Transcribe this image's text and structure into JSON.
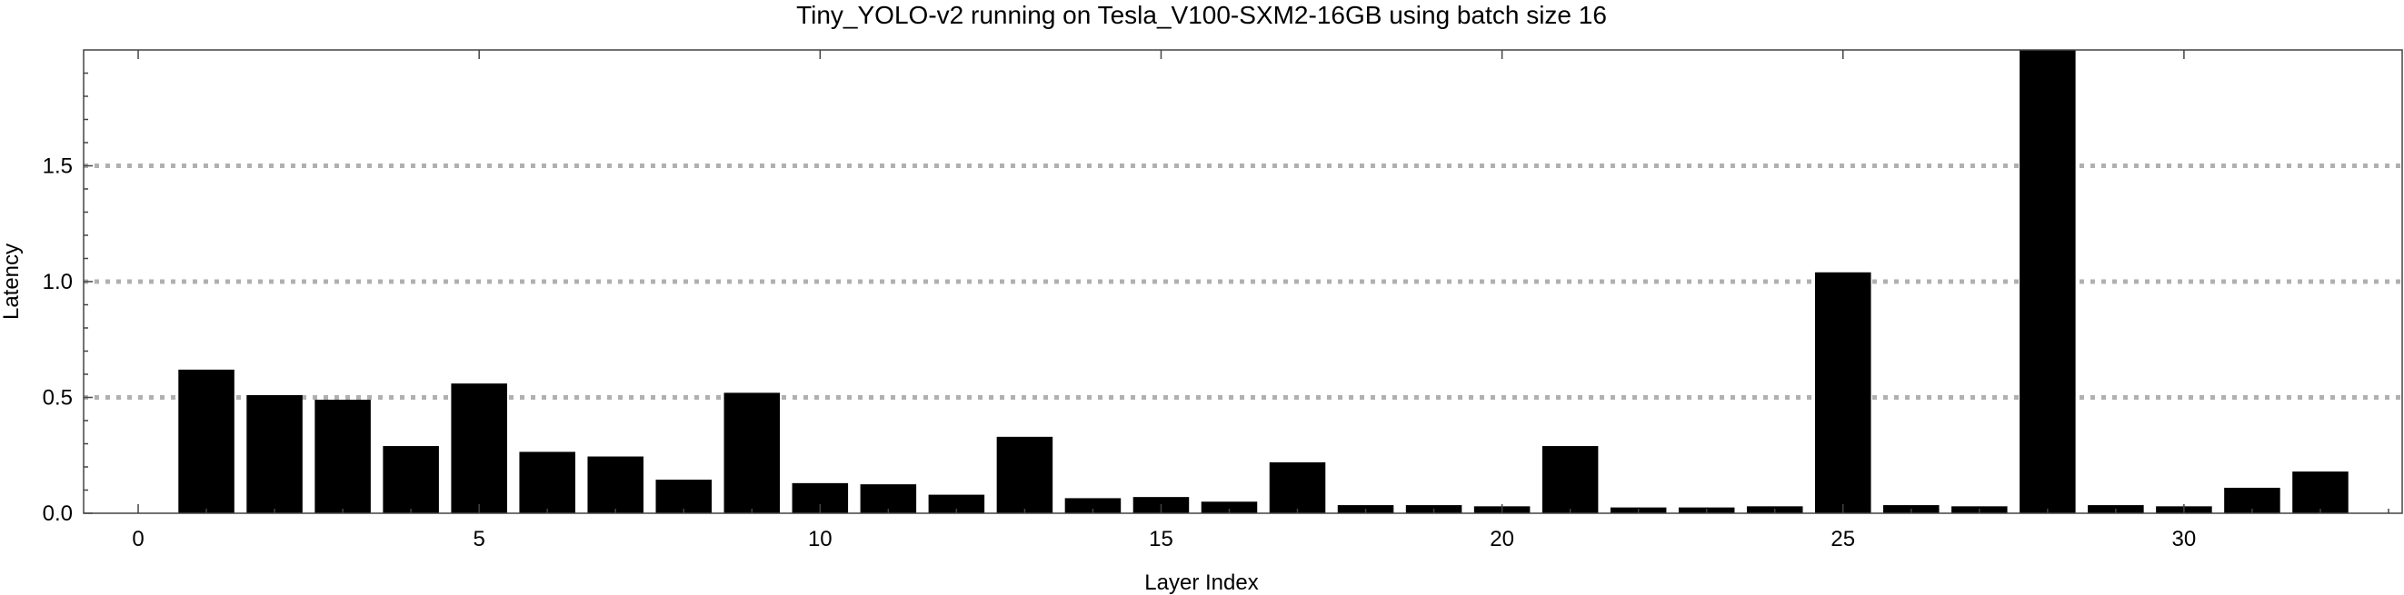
{
  "chart_data": {
    "type": "bar",
    "title": "Tiny_YOLO-v2 running on Tesla_V100-SXM2-16GB using batch size 16",
    "xlabel": "Layer Index",
    "ylabel": "Latency",
    "xlim": [
      -0.8,
      33.2
    ],
    "ylim": [
      0,
      2.0
    ],
    "xticks": [
      0,
      5,
      10,
      15,
      20,
      25,
      30
    ],
    "xtick_labels": [
      "0",
      "5",
      "10",
      "15",
      "20",
      "25",
      "30"
    ],
    "yticks": [
      0,
      0.5,
      1.0,
      1.5
    ],
    "ytick_labels": [
      "0.0",
      "0.5",
      "1.0",
      "1.5"
    ],
    "grid": "horizontal-dotted",
    "x": [
      1,
      2,
      3,
      4,
      5,
      6,
      7,
      8,
      9,
      10,
      11,
      12,
      13,
      14,
      15,
      16,
      17,
      18,
      19,
      20,
      21,
      22,
      23,
      24,
      25,
      26,
      27,
      28,
      29,
      30,
      31,
      32
    ],
    "values": [
      0.62,
      0.51,
      0.49,
      0.29,
      0.56,
      0.265,
      0.245,
      0.145,
      0.52,
      0.13,
      0.125,
      0.08,
      0.33,
      0.065,
      0.07,
      0.05,
      0.22,
      0.035,
      0.035,
      0.03,
      0.29,
      0.025,
      0.025,
      0.03,
      1.04,
      0.035,
      0.03,
      2.0,
      0.035,
      0.03,
      0.11,
      0.18
    ],
    "bar_color": "#000000",
    "grid_color": "#b0b0b0"
  }
}
